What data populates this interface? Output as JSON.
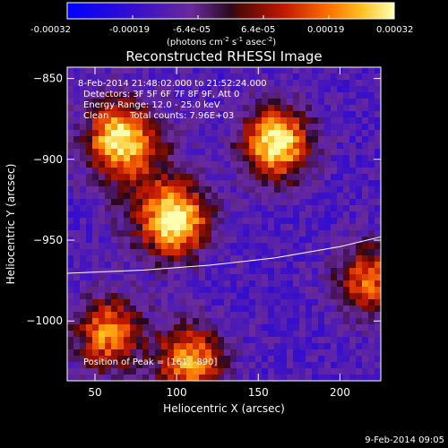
{
  "colorbar": {
    "ticks": [
      "-0.00032",
      "-0.00019",
      "-6.4e-05",
      "6.4e-05",
      "0.00019",
      "0.00032"
    ],
    "units_main": "(photons cm",
    "units_sup1": "-2",
    "units_mid": " s",
    "units_sup2": "-1",
    "units_tail": " asec",
    "units_sup3": "-2",
    "units_close": ")"
  },
  "annotations": {
    "time_range": "8-Feb-2014 21:48:02.000 to 21:52:24.000",
    "detectors": "Detectors: 3F 5F 6F 7F 8F 9F, Att 0",
    "energy": "Energy Range: 12.0 - 25.0 keV",
    "clean_label": "Clean",
    "total_counts": "Total counts: 7.96E+03",
    "peak": "Position of Peak = [161, -890]"
  },
  "footer": {
    "timestamp": "9-Feb-2014 09:05"
  },
  "chart_data": {
    "type": "heatmap",
    "title": "Reconstructed RHESSI Image",
    "xlabel": "Heliocentric X (arcsec)",
    "ylabel": "Heliocentric Y (arcsec)",
    "xlim": [
      33,
      225
    ],
    "ylim": [
      -1037,
      -843
    ],
    "xticks": [
      50,
      100,
      150,
      200
    ],
    "yticks": [
      -850,
      -900,
      -950,
      -1000
    ],
    "zlim": [
      -0.00032,
      0.00032
    ],
    "peak_position": [
      161,
      -890
    ],
    "sources": [
      {
        "x": 161,
        "y": -890,
        "intensity": 0.00032
      },
      {
        "x": 100,
        "y": -938,
        "intensity": 0.00029
      },
      {
        "x": 64,
        "y": -887,
        "intensity": 0.00024
      },
      {
        "x": 108,
        "y": -1025,
        "intensity": 0.00022
      },
      {
        "x": 58,
        "y": -1008,
        "intensity": 0.00019
      },
      {
        "x": 218,
        "y": -975,
        "intensity": 0.00015
      }
    ],
    "limb_curve": [
      [
        33,
        -970.5
      ],
      [
        80,
        -968.5
      ],
      [
        120,
        -965.5
      ],
      [
        160,
        -961
      ],
      [
        200,
        -954
      ],
      [
        225,
        -948
      ]
    ]
  }
}
